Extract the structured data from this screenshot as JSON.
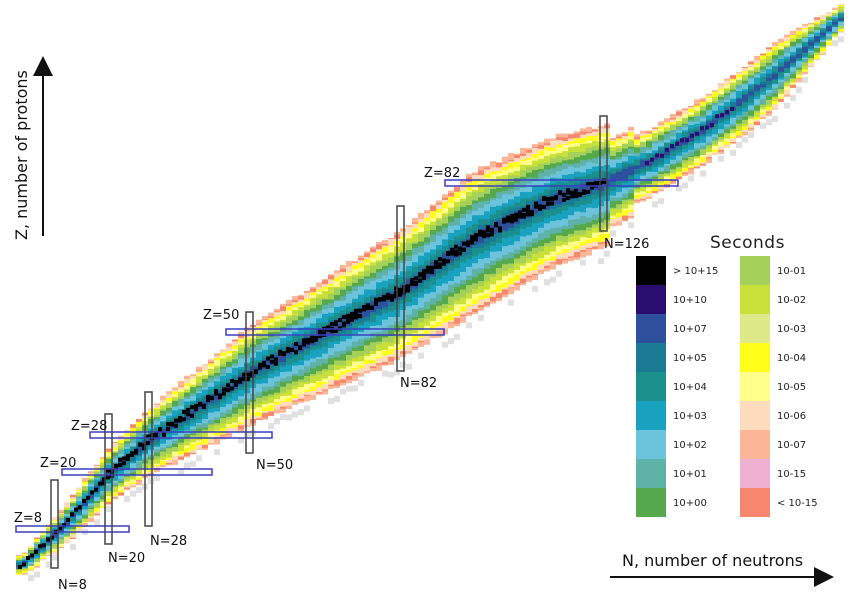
{
  "axes": {
    "x_label": "N, number of neutrons",
    "y_label": "Z, number of protons"
  },
  "magic_numbers": {
    "z_labels": [
      "Z=8",
      "Z=20",
      "Z=28",
      "Z=50",
      "Z=82"
    ],
    "n_labels": [
      "N=8",
      "N=20",
      "N=28",
      "N=50",
      "N=82",
      "N=126"
    ]
  },
  "legend": {
    "title": "Seconds",
    "items": [
      {
        "label": "> 10+15",
        "color": "#000000"
      },
      {
        "label": "10+10",
        "color": "#2a0e6e"
      },
      {
        "label": "10+07",
        "color": "#2d4f9c"
      },
      {
        "label": "10+05",
        "color": "#1a7a96"
      },
      {
        "label": "10+04",
        "color": "#1b8f8c"
      },
      {
        "label": "10+03",
        "color": "#19a1c0"
      },
      {
        "label": "10+02",
        "color": "#6cc4dc"
      },
      {
        "label": "10+01",
        "color": "#5fb2a8"
      },
      {
        "label": "10+00",
        "color": "#55a84c"
      },
      {
        "label": "10-01",
        "color": "#a5d15a"
      },
      {
        "label": "10-02",
        "color": "#c8e03a"
      },
      {
        "label": "10-03",
        "color": "#dde887"
      },
      {
        "label": "10-04",
        "color": "#ffff1a"
      },
      {
        "label": "10-05",
        "color": "#ffff8c"
      },
      {
        "label": "10-06",
        "color": "#fddcbd"
      },
      {
        "label": "10-07",
        "color": "#fbb597"
      },
      {
        "label": "10-15",
        "color": "#eeb1d2"
      },
      {
        "label": "< 10-15",
        "color": "#f6866e"
      }
    ]
  },
  "colors": {
    "magic_box_z": "#3a3ec0",
    "magic_box_n": "#444444",
    "unknown_nuclide": "#e0e0e0"
  }
}
